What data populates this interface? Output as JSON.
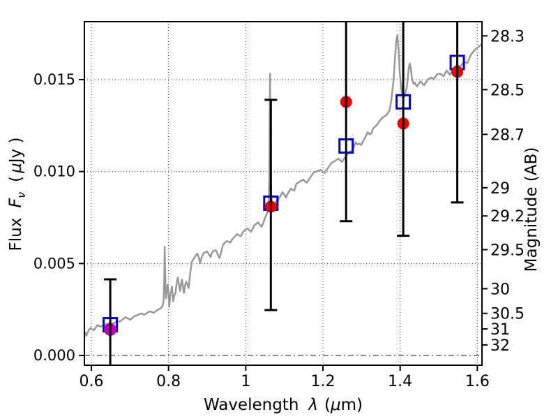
{
  "chart_data": {
    "type": "line",
    "title": "",
    "xlabel": "Wavelength λ (μm)",
    "ylabel": "Flux Fν ( μJy )",
    "ylabel_right": "Magnitude (AB)",
    "xlim": [
      0.582,
      1.612
    ],
    "ylim_flux": [
      -0.00053,
      0.01815
    ],
    "x_ticks": [
      0.6,
      0.8,
      1.0,
      1.2,
      1.4,
      1.6
    ],
    "x_tick_labels": [
      "0.6",
      "0.8",
      "1",
      "1.2",
      "1.4",
      "1.6"
    ],
    "y_ticks": [
      0.0,
      0.005,
      0.01,
      0.015
    ],
    "y_tick_labels": [
      "0.000",
      "0.005",
      "0.010",
      "0.015"
    ],
    "right_axis": {
      "label": "Magnitude (AB)",
      "ticks": [
        28.3,
        28.5,
        28.7,
        29,
        29.2,
        29.5,
        30,
        30.5,
        31,
        32
      ],
      "tick_labels": [
        "28.3",
        "28.5",
        "28.7",
        "29",
        "29.2",
        "29.5",
        "30",
        "30.5",
        "31",
        "32"
      ],
      "flux_zeropoint_ab": 23.9
    },
    "grid": {
      "style": "dotted",
      "zero_line_style": "dash-dot",
      "zero_line_flux": 0.0
    },
    "colors": {
      "spectrum": "#999999",
      "observed": "#ee0000",
      "model": "#0000dd",
      "magenta_point": "#bb00bb",
      "errorbar": "#000000",
      "frame": "#000000"
    },
    "axis_label_parts": {
      "x_prefix": "Wavelength",
      "x_lambda": "λ",
      "x_unit_open": "(",
      "x_mu": "μ",
      "x_unit_close": "m)",
      "y_prefix": "Flux",
      "y_symbol": "F",
      "y_sub": "ν",
      "y_unit_open": "(",
      "y_mu": "μ",
      "y_unit_close": "Jy )",
      "right_label": "Magnitude (AB)"
    },
    "series": [
      {
        "name": "model-spectrum",
        "kind": "line",
        "color": "#999999",
        "points": [
          [
            0.582,
            0.00129
          ],
          [
            0.587,
            0.00107
          ],
          [
            0.59,
            0.00125
          ],
          [
            0.594,
            0.0014
          ],
          [
            0.598,
            0.00149
          ],
          [
            0.602,
            0.00143
          ],
          [
            0.607,
            0.00138
          ],
          [
            0.611,
            0.0015
          ],
          [
            0.616,
            0.00166
          ],
          [
            0.62,
            0.0016
          ],
          [
            0.625,
            0.00157
          ],
          [
            0.63,
            0.00164
          ],
          [
            0.636,
            0.00168
          ],
          [
            0.642,
            0.00172
          ],
          [
            0.649,
            0.00175
          ],
          [
            0.655,
            0.00173
          ],
          [
            0.661,
            0.00179
          ],
          [
            0.668,
            0.00183
          ],
          [
            0.676,
            0.00187
          ],
          [
            0.682,
            0.00198
          ],
          [
            0.689,
            0.00208
          ],
          [
            0.695,
            0.00201
          ],
          [
            0.701,
            0.00195
          ],
          [
            0.707,
            0.00206
          ],
          [
            0.712,
            0.00214
          ],
          [
            0.719,
            0.00219
          ],
          [
            0.725,
            0.00225
          ],
          [
            0.73,
            0.00229
          ],
          [
            0.737,
            0.00221
          ],
          [
            0.744,
            0.00231
          ],
          [
            0.751,
            0.0024
          ],
          [
            0.757,
            0.00236
          ],
          [
            0.762,
            0.00233
          ],
          [
            0.767,
            0.00241
          ],
          [
            0.772,
            0.00248
          ],
          [
            0.777,
            0.00253
          ],
          [
            0.781,
            0.00259
          ],
          [
            0.785,
            0.00272
          ],
          [
            0.787,
            0.0029
          ],
          [
            0.789,
            0.0043
          ],
          [
            0.79,
            0.00592
          ],
          [
            0.791,
            0.0048
          ],
          [
            0.793,
            0.0031
          ],
          [
            0.795,
            0.00345
          ],
          [
            0.798,
            0.00385
          ],
          [
            0.8,
            0.0033
          ],
          [
            0.802,
            0.00265
          ],
          [
            0.805,
            0.00335
          ],
          [
            0.809,
            0.00375
          ],
          [
            0.812,
            0.00295
          ],
          [
            0.815,
            0.00325
          ],
          [
            0.818,
            0.0034
          ],
          [
            0.821,
            0.00395
          ],
          [
            0.824,
            0.00424
          ],
          [
            0.827,
            0.00385
          ],
          [
            0.83,
            0.0035
          ],
          [
            0.833,
            0.00395
          ],
          [
            0.835,
            0.00413
          ],
          [
            0.838,
            0.00365
          ],
          [
            0.84,
            0.0034
          ],
          [
            0.843,
            0.00382
          ],
          [
            0.846,
            0.00402
          ],
          [
            0.849,
            0.00383
          ],
          [
            0.852,
            0.00366
          ],
          [
            0.855,
            0.00425
          ],
          [
            0.857,
            0.00462
          ],
          [
            0.86,
            0.00508
          ],
          [
            0.864,
            0.00522
          ],
          [
            0.869,
            0.00538
          ],
          [
            0.872,
            0.00548
          ],
          [
            0.875,
            0.00553
          ],
          [
            0.879,
            0.00528
          ],
          [
            0.882,
            0.00502
          ],
          [
            0.886,
            0.00536
          ],
          [
            0.891,
            0.00557
          ],
          [
            0.896,
            0.00561
          ],
          [
            0.9,
            0.00565
          ],
          [
            0.904,
            0.00552
          ],
          [
            0.909,
            0.00536
          ],
          [
            0.912,
            0.00556
          ],
          [
            0.915,
            0.00566
          ],
          [
            0.919,
            0.0057
          ],
          [
            0.923,
            0.00572
          ],
          [
            0.927,
            0.00552
          ],
          [
            0.932,
            0.00529
          ],
          [
            0.937,
            0.00568
          ],
          [
            0.941,
            0.00602
          ],
          [
            0.946,
            0.00613
          ],
          [
            0.951,
            0.00622
          ],
          [
            0.956,
            0.00618
          ],
          [
            0.96,
            0.00614
          ],
          [
            0.964,
            0.00629
          ],
          [
            0.969,
            0.00641
          ],
          [
            0.973,
            0.0065
          ],
          [
            0.978,
            0.0066
          ],
          [
            0.982,
            0.00654
          ],
          [
            0.987,
            0.00648
          ],
          [
            0.991,
            0.00664
          ],
          [
            0.996,
            0.00679
          ],
          [
            1.0,
            0.00685
          ],
          [
            1.005,
            0.0069
          ],
          [
            1.009,
            0.00681
          ],
          [
            1.014,
            0.00673
          ],
          [
            1.018,
            0.00689
          ],
          [
            1.023,
            0.00709
          ],
          [
            1.028,
            0.00717
          ],
          [
            1.032,
            0.00724
          ],
          [
            1.036,
            0.00713
          ],
          [
            1.041,
            0.007
          ],
          [
            1.046,
            0.00724
          ],
          [
            1.05,
            0.00747
          ],
          [
            1.055,
            0.00773
          ],
          [
            1.059,
            0.00792
          ],
          [
            1.061,
            0.0096
          ],
          [
            1.062,
            0.0128
          ],
          [
            1.063,
            0.01532
          ],
          [
            1.064,
            0.0118
          ],
          [
            1.066,
            0.0088
          ],
          [
            1.068,
            0.00833
          ],
          [
            1.073,
            0.00821
          ],
          [
            1.077,
            0.0083
          ],
          [
            1.081,
            0.0084
          ],
          [
            1.086,
            0.00853
          ],
          [
            1.091,
            0.00871
          ],
          [
            1.095,
            0.00888
          ],
          [
            1.1,
            0.00874
          ],
          [
            1.104,
            0.00859
          ],
          [
            1.11,
            0.00884
          ],
          [
            1.117,
            0.00907
          ],
          [
            1.121,
            0.00901
          ],
          [
            1.126,
            0.00897
          ],
          [
            1.131,
            0.00933
          ],
          [
            1.14,
            0.00945
          ],
          [
            1.149,
            0.00956
          ],
          [
            1.153,
            0.00947
          ],
          [
            1.158,
            0.00939
          ],
          [
            1.167,
            0.00967
          ],
          [
            1.176,
            0.00994
          ],
          [
            1.185,
            0.01002
          ],
          [
            1.194,
            0.01009
          ],
          [
            1.199,
            0.00997
          ],
          [
            1.204,
            0.00992
          ],
          [
            1.213,
            0.01019
          ],
          [
            1.222,
            0.01047
          ],
          [
            1.231,
            0.01058
          ],
          [
            1.24,
            0.0107
          ],
          [
            1.245,
            0.01061
          ],
          [
            1.249,
            0.01053
          ],
          [
            1.258,
            0.01079
          ],
          [
            1.267,
            0.01104
          ],
          [
            1.276,
            0.01114
          ],
          [
            1.281,
            0.01138
          ],
          [
            1.285,
            0.01158
          ],
          [
            1.29,
            0.01148
          ],
          [
            1.294,
            0.01152
          ],
          [
            1.299,
            0.01145
          ],
          [
            1.303,
            0.01161
          ],
          [
            1.308,
            0.0118
          ],
          [
            1.312,
            0.01196
          ],
          [
            1.316,
            0.01214
          ],
          [
            1.321,
            0.01202
          ],
          [
            1.325,
            0.01207
          ],
          [
            1.33,
            0.01234
          ],
          [
            1.335,
            0.01245
          ],
          [
            1.339,
            0.01251
          ],
          [
            1.345,
            0.01269
          ],
          [
            1.352,
            0.01289
          ],
          [
            1.357,
            0.01297
          ],
          [
            1.361,
            0.01301
          ],
          [
            1.366,
            0.01311
          ],
          [
            1.372,
            0.01331
          ],
          [
            1.376,
            0.0137
          ],
          [
            1.379,
            0.0142
          ],
          [
            1.383,
            0.015
          ],
          [
            1.387,
            0.0163
          ],
          [
            1.39,
            0.0171
          ],
          [
            1.393,
            0.01742
          ],
          [
            1.396,
            0.0166
          ],
          [
            1.399,
            0.0154
          ],
          [
            1.402,
            0.0147
          ],
          [
            1.405,
            0.01425
          ],
          [
            1.408,
            0.01398
          ],
          [
            1.411,
            0.0141
          ],
          [
            1.414,
            0.01432
          ],
          [
            1.418,
            0.01468
          ],
          [
            1.422,
            0.0156
          ],
          [
            1.425,
            0.01588
          ],
          [
            1.428,
            0.01555
          ],
          [
            1.431,
            0.015
          ],
          [
            1.435,
            0.01476
          ],
          [
            1.438,
            0.01483
          ],
          [
            1.441,
            0.0147
          ],
          [
            1.444,
            0.01463
          ],
          [
            1.449,
            0.0148
          ],
          [
            1.453,
            0.01491
          ],
          [
            1.458,
            0.01477
          ],
          [
            1.462,
            0.01469
          ],
          [
            1.467,
            0.01486
          ],
          [
            1.471,
            0.01499
          ],
          [
            1.476,
            0.01506
          ],
          [
            1.48,
            0.01511
          ],
          [
            1.484,
            0.01506
          ],
          [
            1.488,
            0.01504
          ],
          [
            1.492,
            0.01518
          ],
          [
            1.496,
            0.01529
          ],
          [
            1.501,
            0.01531
          ],
          [
            1.505,
            0.01531
          ],
          [
            1.509,
            0.01523
          ],
          [
            1.513,
            0.01519
          ],
          [
            1.517,
            0.01537
          ],
          [
            1.521,
            0.01549
          ],
          [
            1.525,
            0.01537
          ],
          [
            1.529,
            0.01526
          ],
          [
            1.534,
            0.01545
          ],
          [
            1.538,
            0.01561
          ],
          [
            1.543,
            0.01572
          ],
          [
            1.547,
            0.01581
          ],
          [
            1.552,
            0.01575
          ],
          [
            1.556,
            0.01571
          ],
          [
            1.561,
            0.01585
          ],
          [
            1.565,
            0.01596
          ],
          [
            1.57,
            0.01592
          ],
          [
            1.574,
            0.01589
          ],
          [
            1.579,
            0.01613
          ],
          [
            1.583,
            0.01634
          ],
          [
            1.588,
            0.01647
          ],
          [
            1.592,
            0.01657
          ],
          [
            1.596,
            0.01666
          ],
          [
            1.6,
            0.01672
          ],
          [
            1.604,
            0.0168
          ],
          [
            1.608,
            0.01688
          ],
          [
            1.611,
            0.01692
          ]
        ]
      },
      {
        "name": "model-photometry",
        "kind": "square",
        "color": "#0000dd",
        "points": [
          [
            0.649,
            0.00167
          ],
          [
            1.065,
            0.00828
          ],
          [
            1.26,
            0.01139
          ],
          [
            1.408,
            0.01379
          ],
          [
            1.548,
            0.01593
          ]
        ]
      },
      {
        "name": "observed-photometry",
        "kind": "circle",
        "color": "#ee0000",
        "points": [
          [
            1.065,
            0.00809
          ],
          [
            1.26,
            0.01379
          ],
          [
            1.408,
            0.01261
          ],
          [
            1.548,
            0.01542
          ]
        ]
      },
      {
        "name": "observed-photometry-magenta",
        "kind": "circle",
        "color": "#bb00bb",
        "points": [
          [
            0.649,
            0.00141
          ]
        ]
      },
      {
        "name": "error-bars",
        "kind": "errorbar",
        "color": "#000000",
        "points": [
          {
            "x": 0.649,
            "lo": -0.0012,
            "hi": 0.00414
          },
          {
            "x": 1.065,
            "lo": 0.00247,
            "hi": 0.0139
          },
          {
            "x": 1.26,
            "lo": 0.0073,
            "hi": 0.02
          },
          {
            "x": 1.408,
            "lo": 0.00651,
            "hi": 0.02
          },
          {
            "x": 1.548,
            "lo": 0.00832,
            "hi": 0.02
          }
        ]
      }
    ]
  }
}
